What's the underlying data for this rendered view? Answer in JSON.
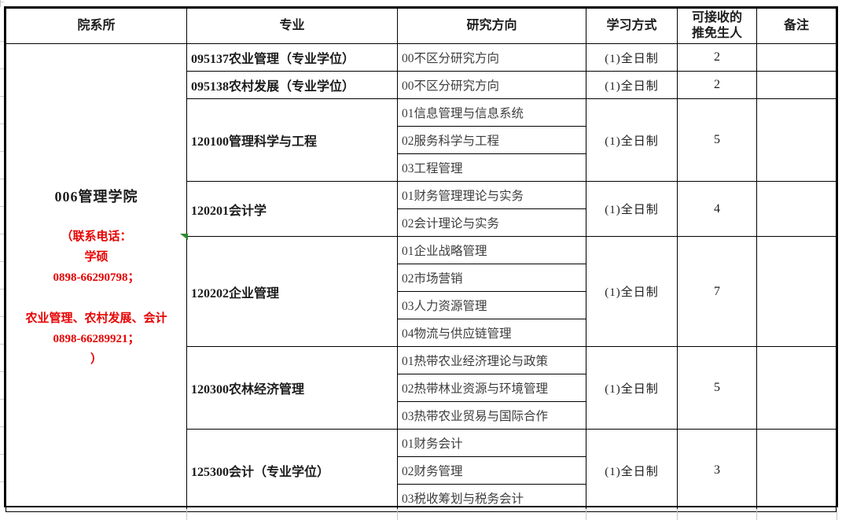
{
  "page": {
    "background": "#ffffff"
  },
  "table": {
    "headers": [
      "院系所",
      "专业",
      "研究方向",
      "学习方式",
      "可接收的\n推免生人",
      "备注"
    ],
    "department": {
      "name": "006管理学院",
      "contact_lines": [
        "（联系电话：",
        "学硕",
        "0898-66290798；",
        "",
        "农业管理、农村发展、会计",
        "0898-66289921；",
        "）"
      ]
    },
    "sections": [
      {
        "major": "095137农业管理（专业学位）",
        "directions": [
          "00不区分研究方向"
        ],
        "study_mode": "(1)全日制",
        "quota": "2",
        "remark": ""
      },
      {
        "major": "095138农村发展（专业学位）",
        "directions": [
          "00不区分研究方向"
        ],
        "study_mode": "(1)全日制",
        "quota": "2",
        "remark": ""
      },
      {
        "major": "120100管理科学与工程",
        "directions": [
          "01信息管理与信息系统",
          "02服务科学与工程",
          "03工程管理"
        ],
        "study_mode": "(1)全日制",
        "quota": "5",
        "remark": ""
      },
      {
        "major": "120201会计学",
        "directions": [
          "01财务管理理论与实务",
          "02会计理论与实务"
        ],
        "study_mode": "(1)全日制",
        "quota": "4",
        "remark": ""
      },
      {
        "major": "120202企业管理",
        "directions": [
          "01企业战略管理",
          "02市场营销",
          "03人力资源管理",
          "04物流与供应链管理"
        ],
        "study_mode": "(1)全日制",
        "quota": "7",
        "remark": ""
      },
      {
        "major": "120300农林经济管理",
        "directions": [
          "01热带农业经济理论与政策",
          "02热带林业资源与环境管理",
          "03热带农业贸易与国际合作"
        ],
        "study_mode": "(1)全日制",
        "quota": "5",
        "remark": ""
      },
      {
        "major": "125300会计（专业学位）",
        "directions": [
          "01财务会计",
          "02财务管理",
          "03税收筹划与税务会计"
        ],
        "study_mode": "(1)全日制",
        "quota": "3",
        "remark": ""
      }
    ],
    "colors": {
      "border": "#000000",
      "text": "#1c1c1c",
      "direction_text": "#3d3d3d",
      "contact_red": "#e60000",
      "marker_green": "#2e8b2e",
      "gridline_gray": "#c6c6c6"
    }
  }
}
